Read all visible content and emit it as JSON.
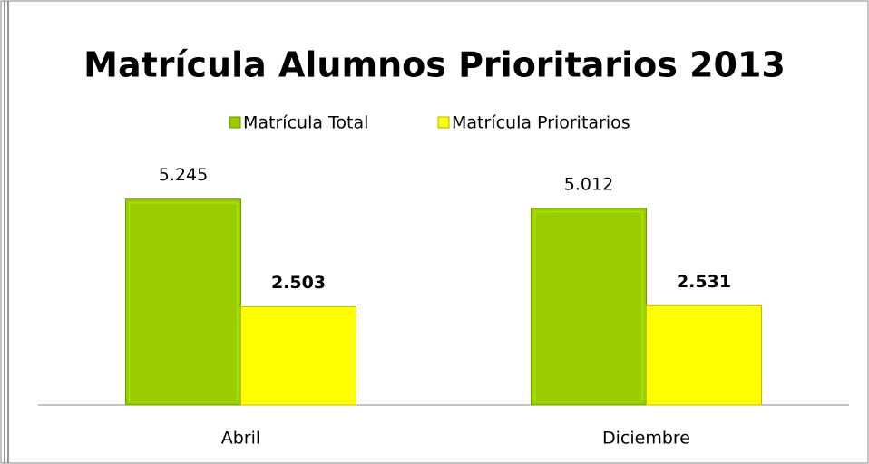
{
  "chart_data": {
    "type": "bar",
    "title": "Matrícula Alumnos Prioritarios 2013",
    "categories": [
      "Abril",
      "Diciembre"
    ],
    "series": [
      {
        "name": "Matrícula Total",
        "color": "#99cc00",
        "values": [
          5245,
          5012
        ],
        "value_labels": [
          "5.245",
          "5.012"
        ]
      },
      {
        "name": "Matrícula Prioritarios",
        "color": "#ffff00",
        "values": [
          2503,
          2531
        ],
        "value_labels": [
          "2.503",
          "2.531"
        ]
      }
    ],
    "ylim": [
      0,
      6000
    ],
    "legend": "top"
  }
}
